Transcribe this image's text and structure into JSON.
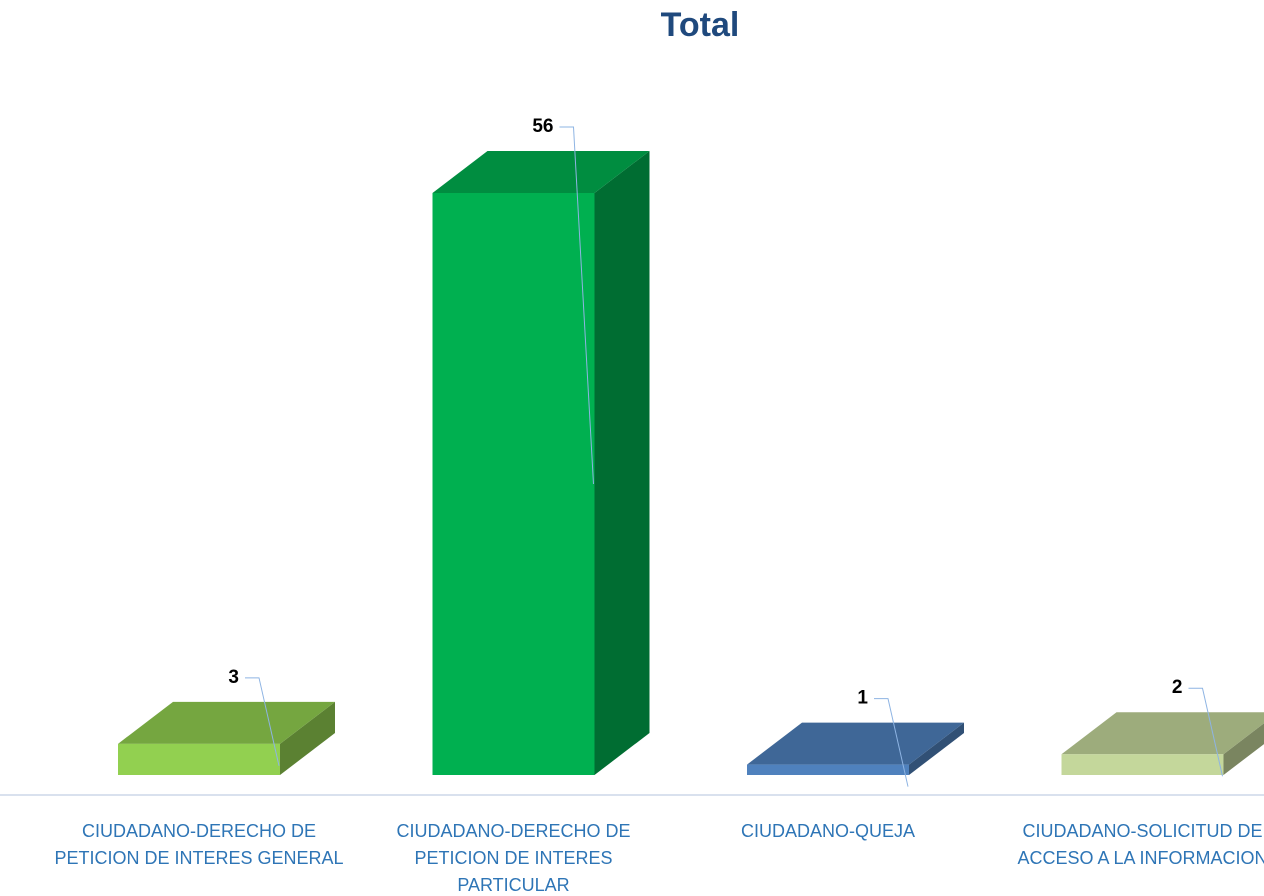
{
  "chart_data": {
    "type": "bar3d",
    "title": "Total",
    "categories": [
      "CIUDADANO-DERECHO DE PETICION DE INTERES GENERAL",
      "CIUDADANO-DERECHO DE PETICION DE INTERES PARTICULAR",
      "CIUDADANO-QUEJA",
      "CIUDADANO-SOLICITUD DE ACCESO A LA INFORMACION"
    ],
    "values": [
      3,
      56,
      1,
      2
    ],
    "colors": [
      "#92d050",
      "#00b050",
      "#4f81bd",
      "#c4d79b"
    ]
  }
}
